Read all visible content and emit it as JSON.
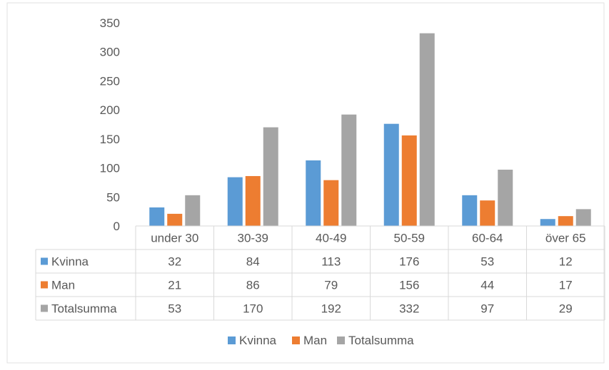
{
  "chart_data": {
    "type": "bar",
    "categories": [
      "under 30",
      "30-39",
      "40-49",
      "50-59",
      "60-64",
      "över 65"
    ],
    "series": [
      {
        "name": "Kvinna",
        "values": [
          32,
          84,
          113,
          176,
          53,
          12
        ],
        "color": "#5B9BD5"
      },
      {
        "name": "Man",
        "values": [
          21,
          86,
          79,
          156,
          44,
          17
        ],
        "color": "#ED7D31"
      },
      {
        "name": "Totalsumma",
        "values": [
          53,
          170,
          192,
          332,
          97,
          29
        ],
        "color": "#A5A5A5"
      }
    ],
    "y_ticks": [
      0,
      50,
      100,
      150,
      200,
      250,
      300,
      350
    ],
    "ylim": [
      0,
      350
    ],
    "grid": false,
    "data_table": true,
    "legend_position": "bottom"
  }
}
